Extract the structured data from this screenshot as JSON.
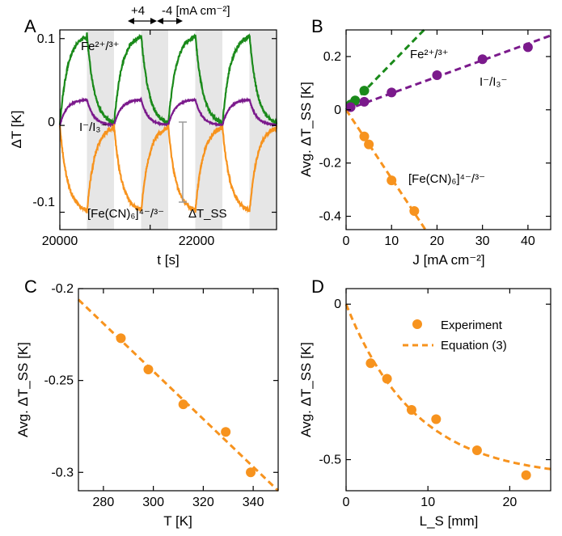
{
  "colors": {
    "green": "#1a8a1a",
    "purple": "#7b1a8c",
    "orange": "#f7931e",
    "shade": "#e6e6e6",
    "gray": "#9a9a9a"
  },
  "chart_data": [
    {
      "panel": "A",
      "type": "line",
      "title": "",
      "xlabel": "t [s]",
      "ylabel": "ΔT [K]",
      "xlim": [
        20000,
        24800
      ],
      "ylim": [
        -0.12,
        0.11
      ],
      "x_ticks": [
        20000,
        22000
      ],
      "x_tick_labels": [
        "20000",
        "22000"
      ],
      "y_ticks": [
        0.1,
        0,
        -0.1
      ],
      "y_tick_labels": [
        "0.1",
        "0",
        "-0.1"
      ],
      "half_period_s": 600,
      "first_shaded_start_s": 20600,
      "current_labels": {
        "positive": "+4",
        "negative": "-4 [mA cm⁻²]"
      },
      "series": [
        {
          "name": "Fe²⁺/³⁺",
          "color": "green",
          "amplitude": 0.105,
          "tau_s": 170,
          "offset": 0
        },
        {
          "name": "I⁻/I₃⁻",
          "color": "purple",
          "amplitude": 0.03,
          "tau_s": 150,
          "offset": 0
        },
        {
          "name": "[Fe(CN)₆]⁴⁻/³⁻",
          "color": "orange",
          "amplitude": -0.1,
          "tau_s": 170,
          "offset": 0
        }
      ],
      "annotation": "ΔT_SS"
    },
    {
      "panel": "B",
      "type": "scatter",
      "title": "",
      "xlabel": "J [mA cm⁻²]",
      "ylabel": "Avg. ΔT_SS [K]",
      "xlim": [
        0,
        45
      ],
      "ylim": [
        -0.45,
        0.3
      ],
      "x_ticks": [
        0,
        10,
        20,
        30,
        40
      ],
      "y_ticks": [
        0.2,
        0,
        -0.2,
        -0.4
      ],
      "y_tick_labels": [
        "0.2",
        "0",
        "-0.2",
        "-0.4"
      ],
      "series": [
        {
          "name": "Fe²⁺/³⁺",
          "color": "green",
          "x": [
            1,
            2,
            4
          ],
          "y": [
            0.02,
            0.035,
            0.072
          ],
          "fit_slope": 0.0175
        },
        {
          "name": "I⁻/I₃⁻",
          "color": "purple",
          "x": [
            1,
            4,
            10,
            20,
            30,
            40
          ],
          "y": [
            0.01,
            0.03,
            0.065,
            0.13,
            0.19,
            0.235
          ],
          "fit_slope": 0.0062
        },
        {
          "name": "[Fe(CN)₆]⁴⁻/³⁻",
          "color": "orange",
          "x": [
            4,
            5,
            10,
            15
          ],
          "y": [
            -0.1,
            -0.13,
            -0.265,
            -0.38
          ],
          "fit_slope": -0.0258
        }
      ]
    },
    {
      "panel": "C",
      "type": "scatter",
      "title": "",
      "xlabel": "T [K]",
      "ylabel": "Avg. ΔT_SS [K]",
      "xlim": [
        270,
        350
      ],
      "ylim": [
        -0.31,
        -0.2
      ],
      "x_ticks": [
        280,
        300,
        320,
        340
      ],
      "y_ticks": [
        -0.2,
        -0.25,
        -0.3
      ],
      "y_tick_labels": [
        "-0.2",
        "-0.25",
        "-0.3"
      ],
      "series": [
        {
          "name": "",
          "color": "orange",
          "x": [
            287,
            298,
            312,
            329,
            339
          ],
          "y": [
            -0.227,
            -0.244,
            -0.263,
            -0.278,
            -0.3
          ]
        }
      ],
      "fit": {
        "x": [
          270,
          350
        ],
        "y": [
          -0.206,
          -0.31
        ]
      }
    },
    {
      "panel": "D",
      "type": "scatter",
      "title": "",
      "xlabel": "L_S [mm]",
      "ylabel": "Avg. ΔT_SS [K]",
      "xlim": [
        0,
        25
      ],
      "ylim": [
        -0.6,
        0.05
      ],
      "x_ticks": [
        0,
        10,
        20
      ],
      "y_ticks": [
        0,
        -0.5
      ],
      "y_tick_labels": [
        "0",
        "-0.5"
      ],
      "series": [
        {
          "name": "Experiment",
          "color": "orange",
          "x": [
            3,
            5,
            8,
            11,
            16,
            22
          ],
          "y": [
            -0.19,
            -0.24,
            -0.34,
            -0.37,
            -0.47,
            -0.55
          ]
        }
      ],
      "fit": {
        "name": "Equation (3)",
        "amplitude": -0.56,
        "length_scale_mm": 8.5
      }
    }
  ]
}
